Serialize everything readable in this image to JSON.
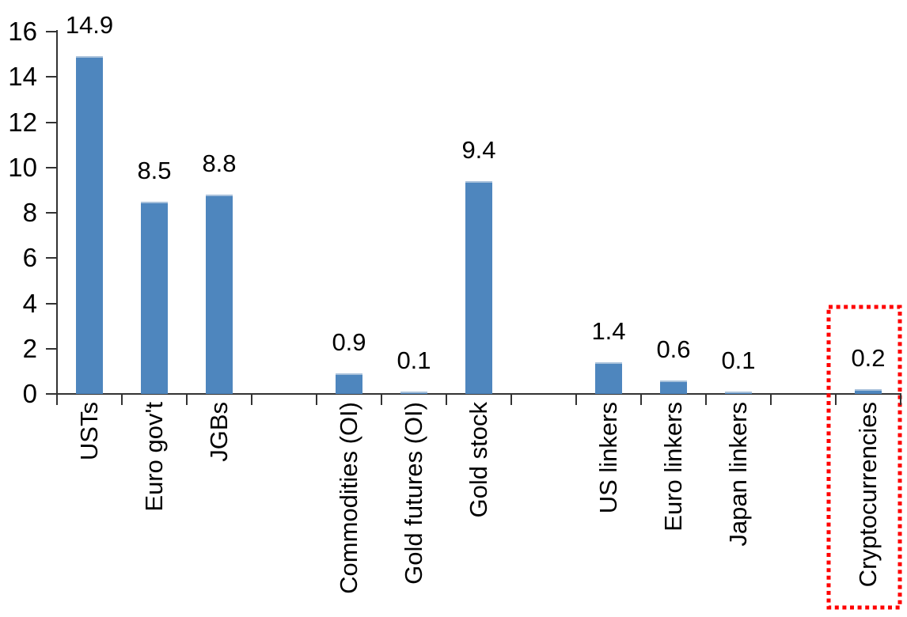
{
  "chart_data": {
    "type": "bar",
    "title": "",
    "xlabel": "",
    "ylabel": "",
    "ylim": [
      0,
      16
    ],
    "yticks": [
      0,
      2,
      4,
      6,
      8,
      10,
      12,
      14,
      16
    ],
    "grid": false,
    "legend": null,
    "categories": [
      "USTs",
      "Euro gov't",
      "JGBs",
      "Commodities (OI)",
      "Gold futures (OI)",
      "Gold stock",
      "US linkers",
      "Euro linkers",
      "Japan linkers",
      "Cryptocurrencies"
    ],
    "values": [
      14.9,
      8.5,
      8.8,
      0.9,
      0.1,
      9.4,
      1.4,
      0.6,
      0.1,
      0.2
    ],
    "data_labels": [
      "14.9",
      "8.5",
      "8.8",
      "0.9",
      "0.1",
      "9.4",
      "1.4",
      "0.6",
      "0.1",
      "0.2"
    ],
    "slots": [
      0,
      1,
      2,
      4,
      5,
      6,
      8,
      9,
      10,
      12
    ],
    "total_slots": 13,
    "bar_color": "#4E86BE",
    "bar_top_edge_color": "#A8C1DB",
    "axis_color": "#333333",
    "label_color": "#000000",
    "highlight": {
      "category": "Cryptocurrencies",
      "style": "red-dotted-rectangle",
      "color": "#FF0000"
    }
  }
}
